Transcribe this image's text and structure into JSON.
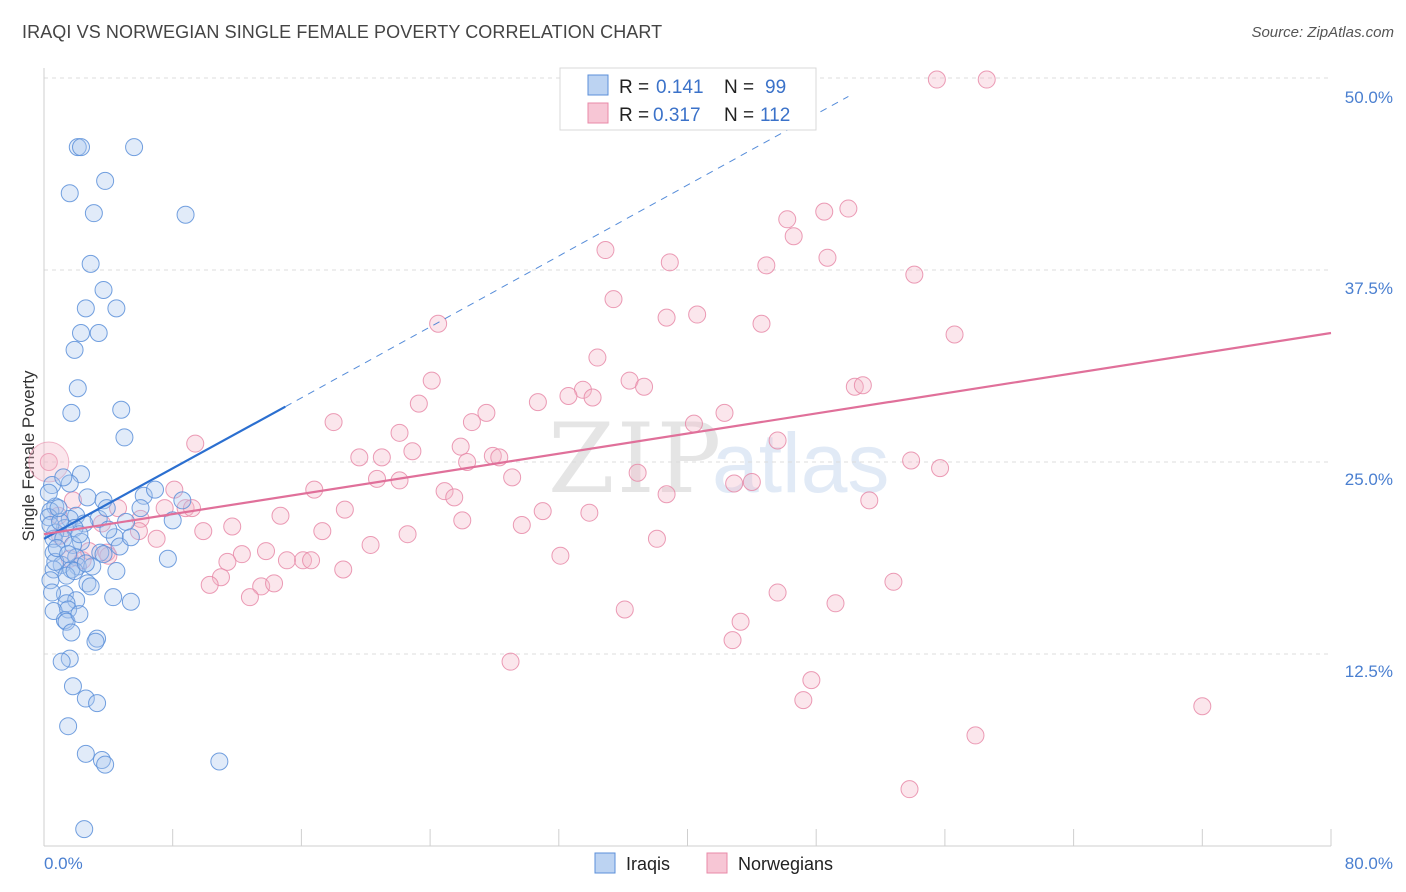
{
  "header": {
    "title": "IRAQI VS NORWEGIAN SINGLE FEMALE POVERTY CORRELATION CHART",
    "source": "Source: ZipAtlas.com"
  },
  "watermark": {
    "zip": "ZIP",
    "atlas": "atlas"
  },
  "legend": {
    "r_label": "R =",
    "n_label": "N =",
    "rows": [
      {
        "r": "0.141",
        "n": "99"
      },
      {
        "r": "0.317",
        "n": "112"
      }
    ]
  },
  "bottom_legend": {
    "iraqis": "Iraqis",
    "norwegians": "Norwegians"
  },
  "axis": {
    "ylabel": "Single Female Poverty",
    "x_min_label": "0.0%",
    "x_max_label": "80.0%",
    "y_tick_labels": [
      "12.5%",
      "25.0%",
      "37.5%",
      "50.0%"
    ]
  },
  "chart_data": {
    "type": "scatter",
    "title": "IRAQI VS NORWEGIAN SINGLE FEMALE POVERTY CORRELATION CHART",
    "xlabel": "",
    "ylabel": "Single Female Poverty",
    "xlim": [
      0,
      80
    ],
    "ylim": [
      0,
      50
    ],
    "y_ticks": [
      12.5,
      25.0,
      37.5,
      50.0
    ],
    "grid": "horizontal dashed",
    "legend_position": "top-center",
    "colors": {
      "iraqis": "#5b8fd9",
      "norwegians": "#e88aa8",
      "iraqis_line": "#2b6fd0",
      "norwegians_line": "#e0709a"
    },
    "series": [
      {
        "name": "Iraqis",
        "r": 0.141,
        "n": 99,
        "trend": {
          "x": [
            0,
            15
          ],
          "y": [
            20.0,
            28.6
          ],
          "extended_to": [
            50,
            48.8
          ]
        },
        "points": [
          [
            2.1,
            45.5
          ],
          [
            2.3,
            45.5
          ],
          [
            5.6,
            45.5
          ],
          [
            1.6,
            42.5
          ],
          [
            3.8,
            43.3
          ],
          [
            3.1,
            41.2
          ],
          [
            8.8,
            41.1
          ],
          [
            2.9,
            37.9
          ],
          [
            3.7,
            36.2
          ],
          [
            2.6,
            35.0
          ],
          [
            4.5,
            35.0
          ],
          [
            2.3,
            33.4
          ],
          [
            3.4,
            33.4
          ],
          [
            1.9,
            32.3
          ],
          [
            2.1,
            29.8
          ],
          [
            1.7,
            28.2
          ],
          [
            4.8,
            28.4
          ],
          [
            5.0,
            26.6
          ],
          [
            2.3,
            24.2
          ],
          [
            0.5,
            23.5
          ],
          [
            1.6,
            23.6
          ],
          [
            2.7,
            22.7
          ],
          [
            3.7,
            22.5
          ],
          [
            0.7,
            22.1
          ],
          [
            0.4,
            21.8
          ],
          [
            0.3,
            21.4
          ],
          [
            8.6,
            22.5
          ],
          [
            6.2,
            22.8
          ],
          [
            2.0,
            21.5
          ],
          [
            1.6,
            21.3
          ],
          [
            3.4,
            21.3
          ],
          [
            2.5,
            21.0
          ],
          [
            1.3,
            20.7
          ],
          [
            1.9,
            20.7
          ],
          [
            0.7,
            20.4
          ],
          [
            5.1,
            21.1
          ],
          [
            8.0,
            21.2
          ],
          [
            6.9,
            23.2
          ],
          [
            0.6,
            20.0
          ],
          [
            1.2,
            20.0
          ],
          [
            2.3,
            19.8
          ],
          [
            1.8,
            19.6
          ],
          [
            4.4,
            20.1
          ],
          [
            3.5,
            19.1
          ],
          [
            0.6,
            19.1
          ],
          [
            2.0,
            18.8
          ],
          [
            4.7,
            19.5
          ],
          [
            1.1,
            18.3
          ],
          [
            2.1,
            18.2
          ],
          [
            3.0,
            18.2
          ],
          [
            5.4,
            20.1
          ],
          [
            0.6,
            18.0
          ],
          [
            1.7,
            18.0
          ],
          [
            7.7,
            18.7
          ],
          [
            1.4,
            17.6
          ],
          [
            2.7,
            17.1
          ],
          [
            4.5,
            17.9
          ],
          [
            0.4,
            17.3
          ],
          [
            2.9,
            16.9
          ],
          [
            1.3,
            16.4
          ],
          [
            2.0,
            16.0
          ],
          [
            1.4,
            15.8
          ],
          [
            5.4,
            15.9
          ],
          [
            0.6,
            15.3
          ],
          [
            1.5,
            15.4
          ],
          [
            3.3,
            13.5
          ],
          [
            1.3,
            14.7
          ],
          [
            1.4,
            14.6
          ],
          [
            3.2,
            13.3
          ],
          [
            1.6,
            12.2
          ],
          [
            1.1,
            12.0
          ],
          [
            1.8,
            10.4
          ],
          [
            2.6,
            9.6
          ],
          [
            3.3,
            9.3
          ],
          [
            1.5,
            7.8
          ],
          [
            2.6,
            6.0
          ],
          [
            3.6,
            5.6
          ],
          [
            3.8,
            5.3
          ],
          [
            10.9,
            5.5
          ],
          [
            2.5,
            1.1
          ],
          [
            0.7,
            18.5
          ],
          [
            1.9,
            17.9
          ],
          [
            0.4,
            20.9
          ],
          [
            3.7,
            19.0
          ],
          [
            0.8,
            19.4
          ],
          [
            2.2,
            20.3
          ],
          [
            1.0,
            21.1
          ],
          [
            0.9,
            22.0
          ],
          [
            4.0,
            20.6
          ],
          [
            1.5,
            19.0
          ],
          [
            2.6,
            18.4
          ],
          [
            0.3,
            23.0
          ],
          [
            1.2,
            24.0
          ],
          [
            6.0,
            22.0
          ],
          [
            0.5,
            16.5
          ],
          [
            2.2,
            15.1
          ],
          [
            3.9,
            22.0
          ],
          [
            4.3,
            16.2
          ],
          [
            1.7,
            13.9
          ]
        ]
      },
      {
        "name": "Norwegians",
        "r": 0.317,
        "n": 112,
        "trend": {
          "x": [
            0,
            80
          ],
          "y": [
            20.3,
            33.4
          ]
        },
        "points": [
          [
            55.5,
            49.9
          ],
          [
            58.6,
            49.9
          ],
          [
            34.3,
            49.0
          ],
          [
            50.0,
            41.5
          ],
          [
            48.5,
            41.3
          ],
          [
            46.2,
            40.8
          ],
          [
            46.6,
            39.7
          ],
          [
            34.9,
            38.8
          ],
          [
            38.9,
            38.0
          ],
          [
            44.9,
            37.8
          ],
          [
            48.7,
            38.3
          ],
          [
            54.1,
            37.2
          ],
          [
            35.4,
            35.6
          ],
          [
            38.7,
            34.4
          ],
          [
            40.6,
            34.6
          ],
          [
            44.6,
            34.0
          ],
          [
            24.5,
            34.0
          ],
          [
            56.6,
            33.3
          ],
          [
            34.4,
            31.8
          ],
          [
            24.1,
            30.3
          ],
          [
            36.4,
            30.3
          ],
          [
            37.3,
            29.9
          ],
          [
            50.4,
            29.9
          ],
          [
            50.9,
            30.0
          ],
          [
            33.5,
            29.7
          ],
          [
            32.6,
            29.3
          ],
          [
            34.1,
            29.2
          ],
          [
            30.7,
            28.9
          ],
          [
            23.3,
            28.8
          ],
          [
            27.5,
            28.2
          ],
          [
            42.3,
            28.2
          ],
          [
            18.0,
            27.6
          ],
          [
            26.6,
            27.6
          ],
          [
            40.4,
            27.5
          ],
          [
            22.1,
            26.9
          ],
          [
            9.4,
            26.2
          ],
          [
            25.9,
            26.0
          ],
          [
            45.6,
            26.4
          ],
          [
            22.9,
            25.7
          ],
          [
            19.6,
            25.3
          ],
          [
            21.0,
            25.3
          ],
          [
            27.9,
            25.4
          ],
          [
            28.3,
            25.3
          ],
          [
            26.3,
            25.0
          ],
          [
            53.9,
            25.1
          ],
          [
            55.7,
            24.6
          ],
          [
            36.9,
            24.3
          ],
          [
            29.1,
            24.0
          ],
          [
            20.7,
            23.9
          ],
          [
            22.1,
            23.8
          ],
          [
            42.9,
            23.6
          ],
          [
            8.1,
            23.2
          ],
          [
            16.8,
            23.2
          ],
          [
            24.9,
            23.1
          ],
          [
            25.5,
            22.7
          ],
          [
            38.7,
            22.9
          ],
          [
            51.3,
            22.5
          ],
          [
            4.6,
            22.0
          ],
          [
            7.5,
            22.0
          ],
          [
            8.8,
            22.0
          ],
          [
            9.2,
            22.0
          ],
          [
            18.7,
            21.9
          ],
          [
            31.0,
            21.8
          ],
          [
            33.9,
            21.7
          ],
          [
            6.0,
            21.3
          ],
          [
            3.6,
            21.0
          ],
          [
            29.7,
            20.9
          ],
          [
            11.7,
            20.8
          ],
          [
            17.3,
            20.5
          ],
          [
            9.9,
            20.5
          ],
          [
            5.9,
            20.5
          ],
          [
            22.6,
            20.3
          ],
          [
            38.1,
            20.0
          ],
          [
            20.3,
            19.6
          ],
          [
            3.9,
            19.1
          ],
          [
            12.3,
            19.0
          ],
          [
            13.8,
            19.2
          ],
          [
            1.6,
            18.7
          ],
          [
            16.1,
            18.6
          ],
          [
            15.1,
            18.6
          ],
          [
            16.6,
            18.6
          ],
          [
            11.4,
            18.5
          ],
          [
            32.1,
            18.9
          ],
          [
            2.4,
            18.6
          ],
          [
            18.6,
            18.0
          ],
          [
            11.0,
            17.5
          ],
          [
            10.3,
            17.0
          ],
          [
            13.5,
            16.9
          ],
          [
            14.3,
            17.1
          ],
          [
            52.8,
            17.2
          ],
          [
            45.6,
            16.5
          ],
          [
            12.8,
            16.2
          ],
          [
            49.2,
            15.8
          ],
          [
            36.1,
            15.4
          ],
          [
            43.3,
            14.6
          ],
          [
            42.8,
            13.4
          ],
          [
            29.0,
            12.0
          ],
          [
            47.7,
            10.8
          ],
          [
            47.2,
            9.5
          ],
          [
            72.0,
            9.1
          ],
          [
            57.9,
            7.2
          ],
          [
            53.8,
            3.7
          ],
          [
            0.3,
            25.0
          ],
          [
            4.0,
            18.9
          ],
          [
            1.0,
            20.2
          ],
          [
            2.8,
            19.2
          ],
          [
            0.9,
            21.5
          ],
          [
            7.0,
            20.0
          ],
          [
            1.8,
            22.5
          ],
          [
            44.0,
            23.7
          ],
          [
            26.0,
            21.2
          ],
          [
            14.7,
            21.5
          ]
        ]
      }
    ]
  }
}
